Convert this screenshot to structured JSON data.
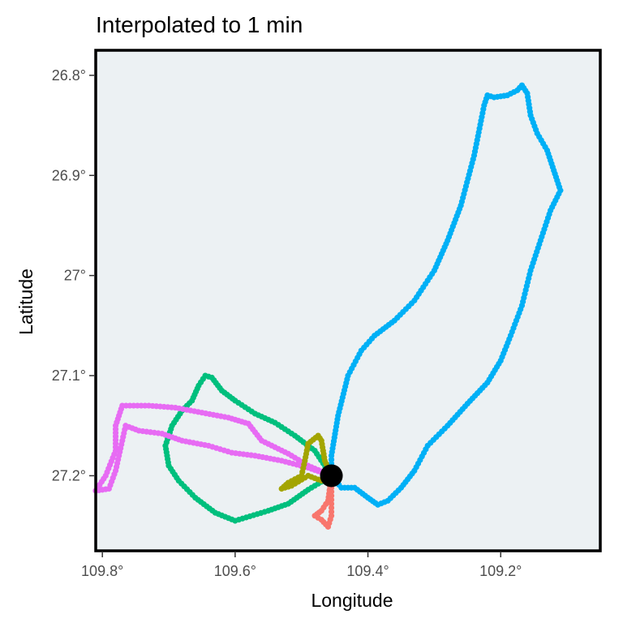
{
  "chart_data": {
    "type": "scatter",
    "title": "Interpolated to 1 min",
    "xlabel": "Longitude",
    "ylabel": "Latitude",
    "xlim": [
      109.81,
      109.05
    ],
    "ylim": [
      27.275,
      26.775
    ],
    "x_reversed": true,
    "y_reversed": true,
    "x_ticks": [
      {
        "value": 109.8,
        "label": "109.8°"
      },
      {
        "value": 109.6,
        "label": "109.6°"
      },
      {
        "value": 109.4,
        "label": "109.4°"
      },
      {
        "value": 109.2,
        "label": "109.2°"
      }
    ],
    "y_ticks": [
      {
        "value": 26.8,
        "label": "26.8°"
      },
      {
        "value": 26.9,
        "label": "26.9°"
      },
      {
        "value": 27.0,
        "label": "27°"
      },
      {
        "value": 27.1,
        "label": "27.1°"
      },
      {
        "value": 27.2,
        "label": "27.2°"
      }
    ],
    "grid": false,
    "legend": "none",
    "panel_background": "#ECF1F3",
    "home": {
      "lon": 109.455,
      "lat": 27.2,
      "color": "#000000"
    },
    "series": [
      {
        "color": "#00B0F6",
        "points": [
          [
            109.455,
            27.2
          ],
          [
            109.44,
            27.212
          ],
          [
            109.42,
            27.212
          ],
          [
            109.4,
            27.222
          ],
          [
            109.385,
            27.229
          ],
          [
            109.37,
            27.225
          ],
          [
            109.35,
            27.212
          ],
          [
            109.33,
            27.195
          ],
          [
            109.31,
            27.17
          ],
          [
            109.28,
            27.15
          ],
          [
            109.25,
            27.128
          ],
          [
            109.22,
            27.107
          ],
          [
            109.2,
            27.085
          ],
          [
            109.185,
            27.06
          ],
          [
            109.168,
            27.03
          ],
          [
            109.155,
            26.995
          ],
          [
            109.14,
            26.965
          ],
          [
            109.125,
            26.935
          ],
          [
            109.11,
            26.915
          ],
          [
            109.12,
            26.895
          ],
          [
            109.13,
            26.875
          ],
          [
            109.145,
            26.858
          ],
          [
            109.155,
            26.84
          ],
          [
            109.16,
            26.818
          ],
          [
            109.168,
            26.81
          ],
          [
            109.175,
            26.815
          ],
          [
            109.19,
            26.82
          ],
          [
            109.21,
            26.822
          ],
          [
            109.22,
            26.82
          ],
          [
            109.225,
            26.83
          ],
          [
            109.24,
            26.88
          ],
          [
            109.26,
            26.93
          ],
          [
            109.28,
            26.965
          ],
          [
            109.3,
            26.995
          ],
          [
            109.33,
            27.025
          ],
          [
            109.36,
            27.045
          ],
          [
            109.39,
            27.06
          ],
          [
            109.41,
            27.075
          ],
          [
            109.43,
            27.1
          ],
          [
            109.445,
            27.14
          ],
          [
            109.455,
            27.18
          ],
          [
            109.455,
            27.2
          ]
        ]
      },
      {
        "color": "#00BF7D",
        "points": [
          [
            109.455,
            27.2
          ],
          [
            109.49,
            27.214
          ],
          [
            109.52,
            27.228
          ],
          [
            109.55,
            27.235
          ],
          [
            109.6,
            27.245
          ],
          [
            109.63,
            27.237
          ],
          [
            109.66,
            27.222
          ],
          [
            109.685,
            27.205
          ],
          [
            109.7,
            27.19
          ],
          [
            109.705,
            27.17
          ],
          [
            109.695,
            27.15
          ],
          [
            109.68,
            27.135
          ],
          [
            109.665,
            27.125
          ],
          [
            109.655,
            27.11
          ],
          [
            109.645,
            27.1
          ],
          [
            109.635,
            27.102
          ],
          [
            109.62,
            27.115
          ],
          [
            109.6,
            27.125
          ],
          [
            109.57,
            27.138
          ],
          [
            109.54,
            27.147
          ],
          [
            109.51,
            27.16
          ],
          [
            109.48,
            27.175
          ],
          [
            109.455,
            27.2
          ]
        ]
      },
      {
        "color": "#E76BF3",
        "points": [
          [
            109.455,
            27.2
          ],
          [
            109.49,
            27.192
          ],
          [
            109.53,
            27.185
          ],
          [
            109.57,
            27.18
          ],
          [
            109.605,
            27.177
          ],
          [
            109.64,
            27.17
          ],
          [
            109.68,
            27.165
          ],
          [
            109.71,
            27.158
          ],
          [
            109.745,
            27.155
          ],
          [
            109.765,
            27.15
          ],
          [
            109.78,
            27.195
          ],
          [
            109.79,
            27.213
          ],
          [
            109.81,
            27.215
          ],
          [
            109.795,
            27.2
          ],
          [
            109.78,
            27.175
          ],
          [
            109.78,
            27.15
          ],
          [
            109.77,
            27.13
          ],
          [
            109.73,
            27.13
          ],
          [
            109.69,
            27.132
          ],
          [
            109.65,
            27.137
          ],
          [
            109.61,
            27.142
          ],
          [
            109.58,
            27.148
          ],
          [
            109.56,
            27.165
          ],
          [
            109.52,
            27.178
          ],
          [
            109.49,
            27.19
          ],
          [
            109.455,
            27.2
          ]
        ]
      },
      {
        "color": "#A3A500",
        "points": [
          [
            109.455,
            27.2
          ],
          [
            109.465,
            27.185
          ],
          [
            109.47,
            27.165
          ],
          [
            109.475,
            27.16
          ],
          [
            109.49,
            27.168
          ],
          [
            109.495,
            27.185
          ],
          [
            109.5,
            27.2
          ],
          [
            109.52,
            27.207
          ],
          [
            109.53,
            27.213
          ],
          [
            109.515,
            27.21
          ],
          [
            109.49,
            27.2
          ],
          [
            109.47,
            27.205
          ],
          [
            109.455,
            27.2
          ]
        ]
      },
      {
        "color": "#F8766D",
        "points": [
          [
            109.455,
            27.2
          ],
          [
            109.455,
            27.22
          ],
          [
            109.455,
            27.24
          ],
          [
            109.46,
            27.251
          ],
          [
            109.47,
            27.244
          ],
          [
            109.48,
            27.24
          ],
          [
            109.47,
            27.235
          ],
          [
            109.46,
            27.225
          ],
          [
            109.455,
            27.2
          ]
        ]
      }
    ]
  }
}
